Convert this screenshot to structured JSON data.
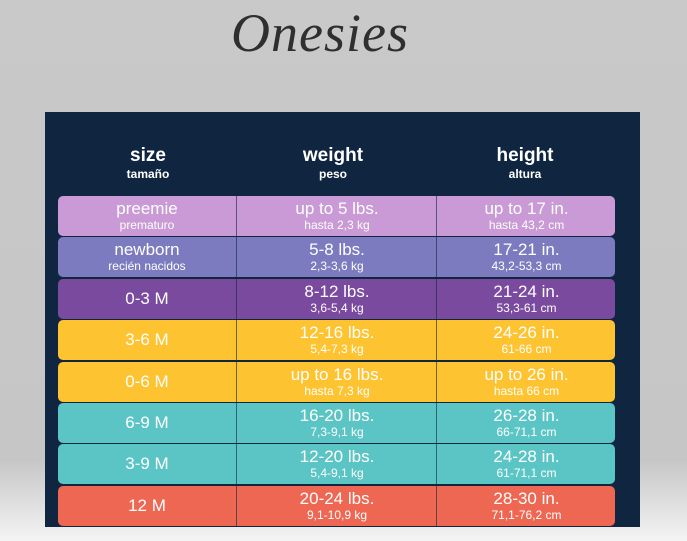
{
  "title": "Onesies",
  "header": [
    {
      "main": "size",
      "sub": "tamaño"
    },
    {
      "main": "weight",
      "sub": "peso"
    },
    {
      "main": "height",
      "sub": "altura"
    }
  ],
  "rows": [
    [
      {
        "main": "preemie",
        "sub": "prematuro"
      },
      {
        "main": "up to 5 lbs.",
        "sub": "hasta 2,3 kg"
      },
      {
        "main": "up to 17 in.",
        "sub": "hasta 43,2 cm"
      }
    ],
    [
      {
        "main": "newborn",
        "sub": "recién nacidos"
      },
      {
        "main": "5-8 lbs.",
        "sub": "2,3-3,6 kg"
      },
      {
        "main": "17-21 in.",
        "sub": "43,2-53,3 cm"
      }
    ],
    [
      {
        "main": "0-3 M"
      },
      {
        "main": "8-12 lbs.",
        "sub": "3,6-5,4 kg"
      },
      {
        "main": "21-24 in.",
        "sub": "53,3-61 cm"
      }
    ],
    [
      {
        "main": "3-6 M"
      },
      {
        "main": "12-16 lbs.",
        "sub": "5,4-7,3 kg"
      },
      {
        "main": "24-26 in.",
        "sub": "61-66 cm"
      }
    ],
    [
      {
        "main": "0-6 M"
      },
      {
        "main": "up to 16 lbs.",
        "sub": "hasta 7,3 kg"
      },
      {
        "main": "up to 26 in.",
        "sub": "hasta 66 cm"
      }
    ],
    [
      {
        "main": "6-9 M"
      },
      {
        "main": "16-20 lbs.",
        "sub": "7,3-9,1 kg"
      },
      {
        "main": "26-28 in.",
        "sub": "66-71,1 cm"
      }
    ],
    [
      {
        "main": "3-9 M"
      },
      {
        "main": "12-20 lbs.",
        "sub": "5,4-9,1 kg"
      },
      {
        "main": "24-28 in.",
        "sub": "61-71,1 cm"
      }
    ],
    [
      {
        "main": "12 M"
      },
      {
        "main": "20-24 lbs.",
        "sub": "9,1-10,9 kg"
      },
      {
        "main": "28-30 in.",
        "sub": "71,1-76,2 cm"
      }
    ]
  ]
}
